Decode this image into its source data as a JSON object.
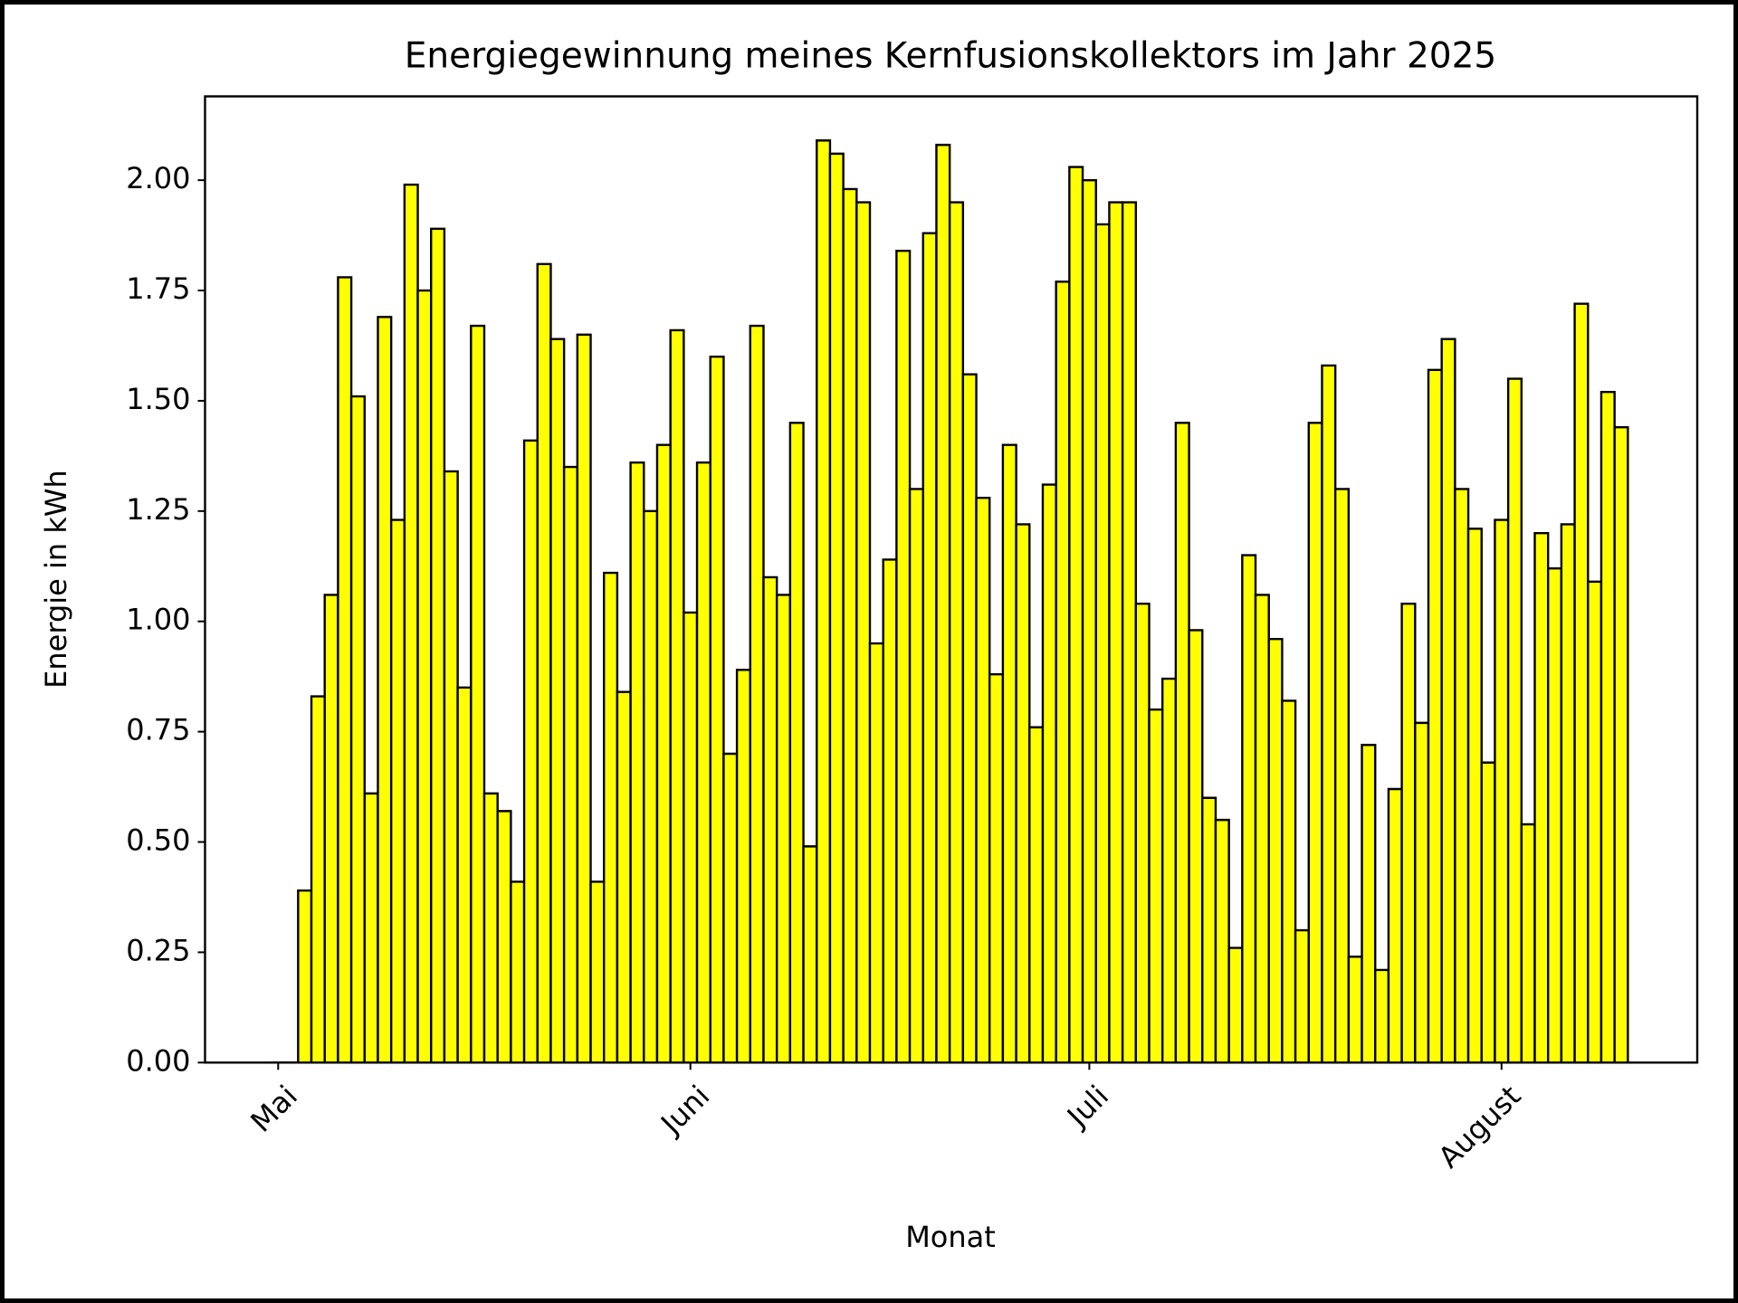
{
  "chart_data": {
    "type": "bar",
    "title": "Energiegewinnung meines Kernfusionskollektors im Jahr 2025",
    "xlabel": "Monat",
    "ylabel": "Energie in kWh",
    "color": "#ffff00",
    "edgecolor": "#000000",
    "categories": [
      "Mai",
      null,
      null,
      null,
      null,
      null,
      null,
      null,
      null,
      null,
      null,
      null,
      null,
      null,
      null,
      null,
      null,
      null,
      null,
      null,
      null,
      null,
      null,
      null,
      null,
      null,
      null,
      null,
      null,
      null,
      null,
      "Juni",
      null,
      null,
      null,
      null,
      null,
      null,
      null,
      null,
      null,
      null,
      null,
      null,
      null,
      null,
      null,
      null,
      null,
      null,
      null,
      null,
      null,
      null,
      null,
      null,
      null,
      null,
      null,
      null,
      null,
      "Juli",
      null,
      null,
      null,
      null,
      null,
      null,
      null,
      null,
      null,
      null,
      null,
      null,
      null,
      null,
      null,
      null,
      null,
      null,
      null,
      null,
      null,
      null,
      null,
      null,
      null,
      null,
      null,
      null,
      null,
      null,
      "August",
      null,
      null,
      null,
      null,
      null,
      null,
      null,
      null,
      null
    ],
    "values": [
      0,
      0,
      0.39,
      0.83,
      1.06,
      1.78,
      1.51,
      0.61,
      1.69,
      1.23,
      1.99,
      1.75,
      1.89,
      1.34,
      0.85,
      1.67,
      0.61,
      0.57,
      0.41,
      1.41,
      1.81,
      1.64,
      1.35,
      1.65,
      0.41,
      1.11,
      0.84,
      1.36,
      1.25,
      1.4,
      1.66,
      1.02,
      1.36,
      1.6,
      0.7,
      0.89,
      1.67,
      1.1,
      1.06,
      1.45,
      0.49,
      2.09,
      2.06,
      1.98,
      1.95,
      0.95,
      1.14,
      1.84,
      1.3,
      1.88,
      2.08,
      1.95,
      1.56,
      1.28,
      0.88,
      1.4,
      1.22,
      0.76,
      1.31,
      1.77,
      2.03,
      2.0,
      1.9,
      1.95,
      1.95,
      1.04,
      0.8,
      0.87,
      1.45,
      0.98,
      0.6,
      0.55,
      0.26,
      1.15,
      1.06,
      0.96,
      0.82,
      0.3,
      1.45,
      1.58,
      1.3,
      0.24,
      0.72,
      0.21,
      0.62,
      1.04,
      0.77,
      1.57,
      1.64,
      1.3,
      1.21,
      0.68,
      1.23,
      1.55,
      0.54,
      1.2,
      1.12,
      1.22,
      1.72,
      1.09,
      1.52,
      1.44
    ],
    "ylim": [
      0,
      2.19
    ],
    "yticks": [
      {
        "value": 0,
        "label": "0.00"
      },
      {
        "value": 0.25,
        "label": "0.25"
      },
      {
        "value": 0.5,
        "label": "0.50"
      },
      {
        "value": 0.75,
        "label": "0.75"
      },
      {
        "value": 1,
        "label": "1.00"
      },
      {
        "value": 1.25,
        "label": "1.25"
      },
      {
        "value": 1.5,
        "label": "1.50"
      },
      {
        "value": 1.75,
        "label": "1.75"
      },
      {
        "value": 2,
        "label": "2.00"
      }
    ],
    "grid": false
  }
}
